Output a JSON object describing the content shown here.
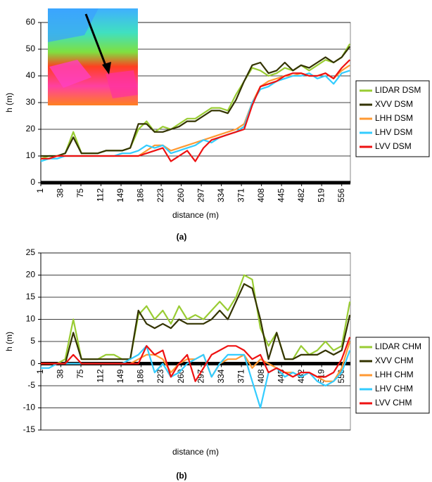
{
  "chart_data": [
    {
      "type": "line",
      "caption": "(a)",
      "x_label": "distance (m)",
      "y_label": "h (m)",
      "x": [
        1,
        16,
        31,
        46,
        61,
        76,
        91,
        106,
        121,
        136,
        151,
        166,
        181,
        196,
        211,
        226,
        241,
        256,
        271,
        286,
        301,
        316,
        331,
        346,
        361,
        376,
        391,
        406,
        421,
        436,
        451,
        466,
        481,
        496,
        511,
        526,
        541,
        556,
        571
      ],
      "xlim": [
        1,
        572
      ],
      "xticks": [
        1,
        38,
        75,
        112,
        149,
        186,
        223,
        260,
        297,
        334,
        371,
        408,
        445,
        482,
        519,
        556
      ],
      "ylim": [
        0,
        60
      ],
      "yticks": [
        0,
        10,
        20,
        30,
        40,
        50,
        60
      ],
      "grid": true,
      "series": [
        {
          "name": "LIDAR DSM",
          "color": "#99cc33",
          "values": [
            9,
            10,
            10,
            11,
            19,
            11,
            11,
            11,
            12,
            12,
            12,
            13,
            20,
            23,
            19,
            21,
            20,
            22,
            24,
            24,
            26,
            28,
            28,
            27,
            33,
            38,
            43,
            42,
            40,
            41,
            43,
            42,
            44,
            42,
            44,
            46,
            45,
            47,
            52
          ]
        },
        {
          "name": "XVV DSM",
          "color": "#333300",
          "values": [
            10,
            10,
            10,
            11,
            17,
            11,
            11,
            11,
            12,
            12,
            12,
            13,
            22,
            22,
            19,
            19,
            20,
            21,
            23,
            23,
            25,
            27,
            27,
            26,
            31,
            38,
            44,
            45,
            41,
            42,
            45,
            42,
            44,
            43,
            45,
            47,
            45,
            47,
            51
          ]
        },
        {
          "name": "LHH DSM",
          "color": "#ff9933",
          "values": [
            9,
            9,
            10,
            10,
            10,
            10,
            10,
            10,
            10,
            10,
            10,
            10,
            10,
            12,
            14,
            14,
            12,
            13,
            14,
            15,
            16,
            17,
            18,
            19,
            20,
            22,
            30,
            36,
            38,
            39,
            40,
            40,
            41,
            40,
            40,
            41,
            39,
            42,
            44
          ]
        },
        {
          "name": "LHV DSM",
          "color": "#33ccff",
          "values": [
            8,
            9,
            9,
            10,
            10,
            10,
            10,
            10,
            10,
            10,
            11,
            11,
            12,
            14,
            13,
            14,
            11,
            12,
            13,
            14,
            16,
            15,
            17,
            18,
            19,
            21,
            30,
            35,
            36,
            38,
            39,
            40,
            40,
            41,
            39,
            40,
            37,
            41,
            42
          ]
        },
        {
          "name": "LVV DSM",
          "color": "#ee1111",
          "values": [
            9,
            9,
            10,
            10,
            10,
            10,
            10,
            10,
            10,
            10,
            10,
            10,
            10,
            11,
            12,
            13,
            8,
            10,
            12,
            8,
            13,
            16,
            17,
            18,
            19,
            20,
            29,
            36,
            37,
            38,
            40,
            41,
            41,
            40,
            40,
            41,
            39,
            43,
            46
          ]
        }
      ]
    },
    {
      "type": "line",
      "caption": "(b)",
      "x_label": "distance (m)",
      "y_label": "h (m)",
      "x": [
        1,
        16,
        31,
        46,
        61,
        76,
        91,
        106,
        121,
        136,
        151,
        166,
        181,
        196,
        211,
        226,
        241,
        256,
        271,
        286,
        301,
        316,
        331,
        346,
        361,
        376,
        391,
        406,
        421,
        436,
        451,
        466,
        481,
        496,
        511,
        526,
        541,
        556,
        571
      ],
      "xlim": [
        1,
        572
      ],
      "xticks": [
        1,
        38,
        75,
        112,
        149,
        186,
        223,
        260,
        297,
        334,
        371,
        408,
        445,
        482,
        519,
        556
      ],
      "ylim": [
        -15,
        25
      ],
      "yticks": [
        -15,
        -10,
        -5,
        0,
        5,
        10,
        15,
        20,
        25
      ],
      "grid": true,
      "series": [
        {
          "name": "LIDAR CHM",
          "color": "#99cc33",
          "values": [
            0,
            0,
            0,
            1,
            10,
            1,
            1,
            1,
            2,
            2,
            1,
            1,
            11,
            13,
            10,
            12,
            9,
            13,
            10,
            11,
            10,
            12,
            14,
            12,
            15,
            20,
            19,
            8,
            4,
            7,
            1,
            1,
            4,
            2,
            3,
            5,
            3,
            4,
            14
          ]
        },
        {
          "name": "XVV CHM",
          "color": "#333300",
          "values": [
            0,
            0,
            0,
            0,
            7,
            1,
            1,
            1,
            1,
            1,
            1,
            1,
            12,
            9,
            8,
            9,
            8,
            10,
            9,
            9,
            9,
            10,
            12,
            10,
            14,
            18,
            17,
            10,
            1,
            7,
            1,
            1,
            2,
            2,
            2,
            3,
            2,
            3,
            11
          ]
        },
        {
          "name": "LHH CHM",
          "color": "#ff9933",
          "values": [
            0,
            0,
            0,
            0,
            0,
            0,
            0,
            0,
            0,
            0,
            0,
            0,
            1,
            2,
            2,
            1,
            -2,
            0,
            1,
            1,
            2,
            -3,
            0,
            1,
            1,
            2,
            -1,
            1,
            0,
            -1,
            -2,
            -2,
            -3,
            -2,
            -3,
            -4,
            -4,
            -1,
            5
          ]
        },
        {
          "name": "LHV CHM",
          "color": "#33ccff",
          "values": [
            -1,
            -1,
            0,
            0,
            0,
            0,
            0,
            0,
            0,
            0,
            0,
            1,
            2,
            4,
            -2,
            0,
            -3,
            -2,
            0,
            1,
            2,
            -3,
            0,
            2,
            2,
            2,
            -4,
            -10,
            -2,
            -1,
            -3,
            -2,
            -3,
            -2,
            -4,
            -5,
            -4,
            -2,
            3
          ]
        },
        {
          "name": "LVV CHM",
          "color": "#ee1111",
          "values": [
            0,
            0,
            0,
            0,
            2,
            0,
            0,
            0,
            0,
            0,
            0,
            0,
            0,
            4,
            2,
            3,
            -3,
            0,
            2,
            -4,
            -1,
            2,
            3,
            4,
            4,
            3,
            1,
            2,
            -2,
            -1,
            -2,
            -3,
            -2,
            -2,
            -3,
            -3,
            -2,
            1,
            6
          ]
        }
      ]
    }
  ]
}
